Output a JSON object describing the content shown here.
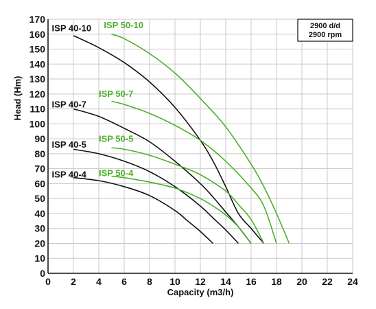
{
  "chart_data": {
    "type": "line",
    "xlabel": "Capacity (m3/h)",
    "ylabel": "Head (Hm)",
    "xlim": [
      0,
      24
    ],
    "ylim": [
      0,
      170
    ],
    "x_ticks": [
      0,
      2,
      4,
      6,
      8,
      10,
      12,
      14,
      16,
      18,
      20,
      22,
      24
    ],
    "y_ticks": [
      0,
      10,
      20,
      30,
      40,
      50,
      60,
      70,
      80,
      90,
      100,
      110,
      120,
      130,
      140,
      150,
      160,
      170
    ],
    "grid": true,
    "speed_box": [
      "2900 d/d",
      "2900 rpm"
    ],
    "colors": {
      "isp40": "#111111",
      "isp50": "#4caf2a"
    },
    "series": [
      {
        "name": "ISP 40-10",
        "color": "#111111",
        "x": [
          2,
          4,
          6,
          8,
          10,
          12,
          13,
          14,
          15,
          16,
          17
        ],
        "y": [
          159,
          151,
          141,
          128,
          111,
          89,
          75,
          58,
          40,
          30,
          20
        ]
      },
      {
        "name": "ISP 40-7",
        "color": "#111111",
        "x": [
          2,
          4,
          6,
          8,
          10,
          12,
          13,
          14,
          15,
          16
        ],
        "y": [
          110,
          105,
          97,
          88,
          75,
          60,
          51,
          41,
          31,
          20
        ]
      },
      {
        "name": "ISP 40-5",
        "color": "#111111",
        "x": [
          2,
          4,
          6,
          8,
          10,
          12,
          13,
          14,
          15
        ],
        "y": [
          83,
          80,
          75,
          68,
          58,
          45,
          37,
          29,
          20
        ]
      },
      {
        "name": "ISP 40-4",
        "color": "#111111",
        "x": [
          2,
          4,
          6,
          8,
          10,
          11,
          12,
          13
        ],
        "y": [
          64,
          62,
          58,
          52,
          42,
          35,
          28,
          20
        ]
      },
      {
        "name": "ISP 50-10",
        "color": "#4caf2a",
        "x": [
          5,
          6,
          8,
          10,
          12,
          14,
          16,
          17,
          18,
          19
        ],
        "y": [
          160,
          157,
          147,
          134,
          117,
          98,
          73,
          58,
          40,
          20
        ]
      },
      {
        "name": "ISP 50-7",
        "color": "#4caf2a",
        "x": [
          5,
          6,
          8,
          10,
          12,
          14,
          16,
          17,
          18
        ],
        "y": [
          115,
          113,
          107,
          99,
          89,
          75,
          57,
          45,
          20
        ]
      },
      {
        "name": "ISP 50-5",
        "color": "#4caf2a",
        "x": [
          5,
          6,
          8,
          10,
          12,
          14,
          15,
          16,
          17
        ],
        "y": [
          84,
          83,
          79,
          73,
          66,
          55,
          46,
          36,
          20
        ]
      },
      {
        "name": "ISP 50-4",
        "color": "#4caf2a",
        "x": [
          5,
          6,
          8,
          10,
          12,
          13,
          14,
          15,
          16
        ],
        "y": [
          65,
          64,
          61,
          57,
          50,
          45,
          39,
          31,
          20
        ]
      }
    ],
    "labels": [
      {
        "text": "ISP 40-10",
        "x": 0.3,
        "y": 162,
        "color": "#111111"
      },
      {
        "text": "ISP 50-10",
        "x": 4.4,
        "y": 164,
        "color": "#4caf2a"
      },
      {
        "text": "ISP 50-7",
        "x": 4.0,
        "y": 118,
        "color": "#4caf2a"
      },
      {
        "text": "ISP 40-7",
        "x": 0.3,
        "y": 111,
        "color": "#111111"
      },
      {
        "text": "ISP 50-5",
        "x": 4.0,
        "y": 88,
        "color": "#4caf2a"
      },
      {
        "text": "ISP 40-5",
        "x": 0.3,
        "y": 84,
        "color": "#111111"
      },
      {
        "text": "ISP 50-4",
        "x": 4.0,
        "y": 65,
        "color": "#4caf2a"
      },
      {
        "text": "ISP 40-4",
        "x": 0.3,
        "y": 64,
        "color": "#111111"
      }
    ]
  }
}
